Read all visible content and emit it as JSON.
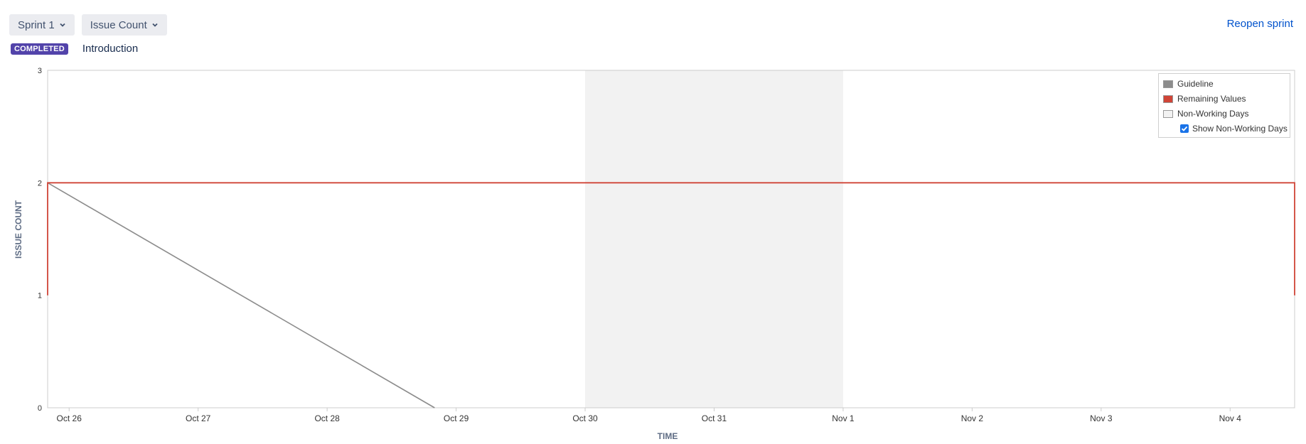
{
  "toolbar": {
    "sprint_select": "Sprint 1",
    "metric_select": "Issue Count",
    "reopen_label": "Reopen sprint"
  },
  "sprint": {
    "status_badge": "COMPLETED",
    "name": "Introduction"
  },
  "legend": {
    "guideline": "Guideline",
    "remaining": "Remaining Values",
    "non_working": "Non-Working Days",
    "show_non_working": "Show Non-Working Days",
    "show_non_working_checked": true
  },
  "colors": {
    "guideline": "#8c8c8c",
    "remaining": "#d04437",
    "non_working": "#f2f2f2",
    "badge": "#5243aa",
    "link": "#0052cc"
  },
  "chart_data": {
    "type": "line",
    "xlabel": "TIME",
    "ylabel": "ISSUE COUNT",
    "x_ticks": [
      "Oct 26",
      "Oct 27",
      "Oct 28",
      "Oct 29",
      "Oct 30",
      "Oct 31",
      "Nov 1",
      "Nov 2",
      "Nov 3",
      "Nov 4"
    ],
    "y_ticks": [
      0,
      1,
      2,
      3
    ],
    "xlim": [
      "Oct 25 20:00",
      "Nov 4 12:00"
    ],
    "ylim": [
      0,
      3
    ],
    "grid": false,
    "legend_position": "top-right",
    "non_working_days": [
      [
        "Oct 30",
        "Nov 1"
      ]
    ],
    "series": [
      {
        "name": "Guideline",
        "points": [
          [
            "Oct 25 20:00",
            2
          ],
          [
            "Oct 28 20:00",
            0
          ]
        ]
      },
      {
        "name": "Remaining Values",
        "points": [
          [
            "Oct 25 20:00",
            1
          ],
          [
            "Oct 25 20:00",
            2
          ],
          [
            "Nov 4 12:00",
            2
          ],
          [
            "Nov 4 12:00",
            1
          ]
        ]
      }
    ]
  }
}
